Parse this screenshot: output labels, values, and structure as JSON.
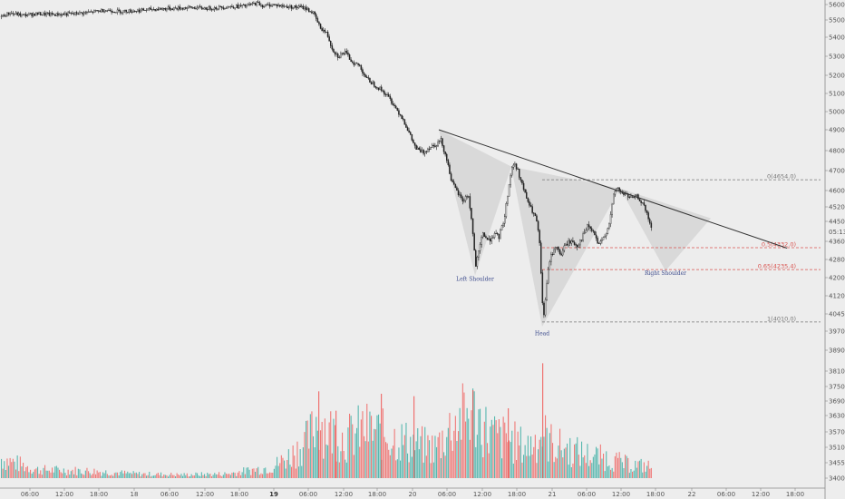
{
  "chart_data": {
    "type": "candlestick",
    "price_axis": {
      "ticks": [
        "5600.0",
        "5500.0",
        "5400.0",
        "5300.0",
        "5200.0",
        "5100.0",
        "5000.0",
        "4900.0",
        "4800.0",
        "4700.0",
        "4600.0",
        "4520.0",
        "4450.0",
        "4360.0",
        "4280.0",
        "4200.0",
        "4120.0",
        "4045.0",
        "3970.0",
        "3890.0",
        "3810.0",
        "3750.0",
        "3690.0",
        "3630.0",
        "3570.0",
        "3510.0",
        "3455.0",
        "3400.0"
      ],
      "current_label": "05:13"
    },
    "time_axis": {
      "ticks": [
        "06:00",
        "12:00",
        "18:00",
        "18",
        "06:00",
        "12:00",
        "18:00",
        "19",
        "06:00",
        "12:00",
        "18:00",
        "20",
        "06:00",
        "12:00",
        "18:00",
        "21",
        "06:00",
        "12:00",
        "18:00",
        "22",
        "06:00",
        "12:00",
        "18:00"
      ],
      "bold": [
        "19"
      ]
    },
    "price_path": [
      [
        0,
        5520
      ],
      [
        10,
        5545
      ],
      [
        25,
        5530
      ],
      [
        40,
        5540
      ],
      [
        60,
        5535
      ],
      [
        80,
        5540
      ],
      [
        100,
        5550
      ],
      [
        115,
        5565
      ],
      [
        130,
        5555
      ],
      [
        150,
        5560
      ],
      [
        170,
        5570
      ],
      [
        190,
        5575
      ],
      [
        210,
        5580
      ],
      [
        230,
        5575
      ],
      [
        250,
        5585
      ],
      [
        270,
        5590
      ],
      [
        283,
        5610
      ],
      [
        290,
        5590
      ],
      [
        300,
        5600
      ],
      [
        310,
        5590
      ],
      [
        320,
        5585
      ],
      [
        335,
        5580
      ],
      [
        345,
        5545
      ],
      [
        352,
        5460
      ],
      [
        360,
        5420
      ],
      [
        366,
        5340
      ],
      [
        372,
        5300
      ],
      [
        380,
        5320
      ],
      [
        388,
        5270
      ],
      [
        396,
        5250
      ],
      [
        404,
        5180
      ],
      [
        412,
        5150
      ],
      [
        420,
        5120
      ],
      [
        428,
        5080
      ],
      [
        436,
        5020
      ],
      [
        444,
        4960
      ],
      [
        450,
        4890
      ],
      [
        458,
        4810
      ],
      [
        466,
        4790
      ],
      [
        474,
        4820
      ],
      [
        480,
        4830
      ],
      [
        486,
        4850
      ],
      [
        492,
        4760
      ],
      [
        498,
        4640
      ],
      [
        504,
        4590
      ],
      [
        510,
        4550
      ],
      [
        516,
        4580
      ],
      [
        520,
        4440
      ],
      [
        524,
        4250
      ],
      [
        527,
        4300
      ],
      [
        532,
        4400
      ],
      [
        538,
        4360
      ],
      [
        544,
        4390
      ],
      [
        550,
        4380
      ],
      [
        556,
        4470
      ],
      [
        560,
        4600
      ],
      [
        564,
        4720
      ],
      [
        568,
        4730
      ],
      [
        572,
        4680
      ],
      [
        578,
        4590
      ],
      [
        584,
        4520
      ],
      [
        590,
        4470
      ],
      [
        594,
        4390
      ],
      [
        597,
        4150
      ],
      [
        599,
        4010
      ],
      [
        602,
        4160
      ],
      [
        606,
        4280
      ],
      [
        612,
        4340
      ],
      [
        618,
        4300
      ],
      [
        624,
        4350
      ],
      [
        630,
        4360
      ],
      [
        636,
        4340
      ],
      [
        642,
        4380
      ],
      [
        648,
        4430
      ],
      [
        654,
        4400
      ],
      [
        660,
        4340
      ],
      [
        666,
        4380
      ],
      [
        672,
        4450
      ],
      [
        676,
        4570
      ],
      [
        680,
        4620
      ],
      [
        684,
        4590
      ],
      [
        690,
        4580
      ],
      [
        696,
        4560
      ],
      [
        702,
        4570
      ],
      [
        708,
        4540
      ],
      [
        714,
        4470
      ],
      [
        718,
        4420
      ]
    ],
    "volume_path": [
      [
        0,
        3470
      ],
      [
        40,
        3430
      ],
      [
        100,
        3425
      ],
      [
        150,
        3415
      ],
      [
        200,
        3412
      ],
      [
        250,
        3415
      ],
      [
        280,
        3430
      ],
      [
        300,
        3440
      ],
      [
        320,
        3480
      ],
      [
        340,
        3540
      ],
      [
        350,
        3620
      ],
      [
        360,
        3580
      ],
      [
        380,
        3540
      ],
      [
        400,
        3580
      ],
      [
        420,
        3560
      ],
      [
        440,
        3540
      ],
      [
        460,
        3520
      ],
      [
        480,
        3510
      ],
      [
        500,
        3600
      ],
      [
        520,
        3650
      ],
      [
        540,
        3560
      ],
      [
        560,
        3540
      ],
      [
        580,
        3510
      ],
      [
        598,
        3560
      ],
      [
        610,
        3520
      ],
      [
        630,
        3500
      ],
      [
        650,
        3480
      ],
      [
        670,
        3470
      ],
      [
        690,
        3450
      ],
      [
        718,
        3440
      ]
    ],
    "pattern": {
      "neckline": [
        [
          484,
          4900
        ],
        [
          868,
          4330
        ]
      ],
      "triangles": [
        [
          [
            484,
            4900
          ],
          [
            524,
            4210
          ],
          [
            564,
            4720
          ]
        ],
        [
          [
            564,
            4720
          ],
          [
            598,
            3990
          ],
          [
            684,
            4610
          ]
        ],
        [
          [
            684,
            4610
          ],
          [
            734,
            4230
          ],
          [
            784,
            4465
          ]
        ]
      ],
      "labels": [
        {
          "text": "Left Shoulder",
          "x": 524,
          "price": 4195
        },
        {
          "text": "Head",
          "x": 598,
          "price": 3960
        },
        {
          "text": "Right Shoulder",
          "x": 734,
          "price": 4220
        }
      ]
    },
    "fib_levels": [
      {
        "label": "0(4654.0)",
        "price": 4654,
        "color": "#777777",
        "x_start": 598
      },
      {
        "label": "0.5(4332.0)",
        "price": 4332,
        "color": "#d9534f",
        "x_start": 598
      },
      {
        "label": "0.65(4235.4)",
        "price": 4235.4,
        "color": "#d9534f",
        "x_start": 598
      },
      {
        "label": "1(4010.0)",
        "price": 4010,
        "color": "#777777",
        "x_start": 598
      }
    ],
    "colors": {
      "up": "#26a69a",
      "down": "#ef5350",
      "candle": "#222222",
      "line": "#333333",
      "triangle": "#c8c8c8"
    },
    "grid": false
  }
}
